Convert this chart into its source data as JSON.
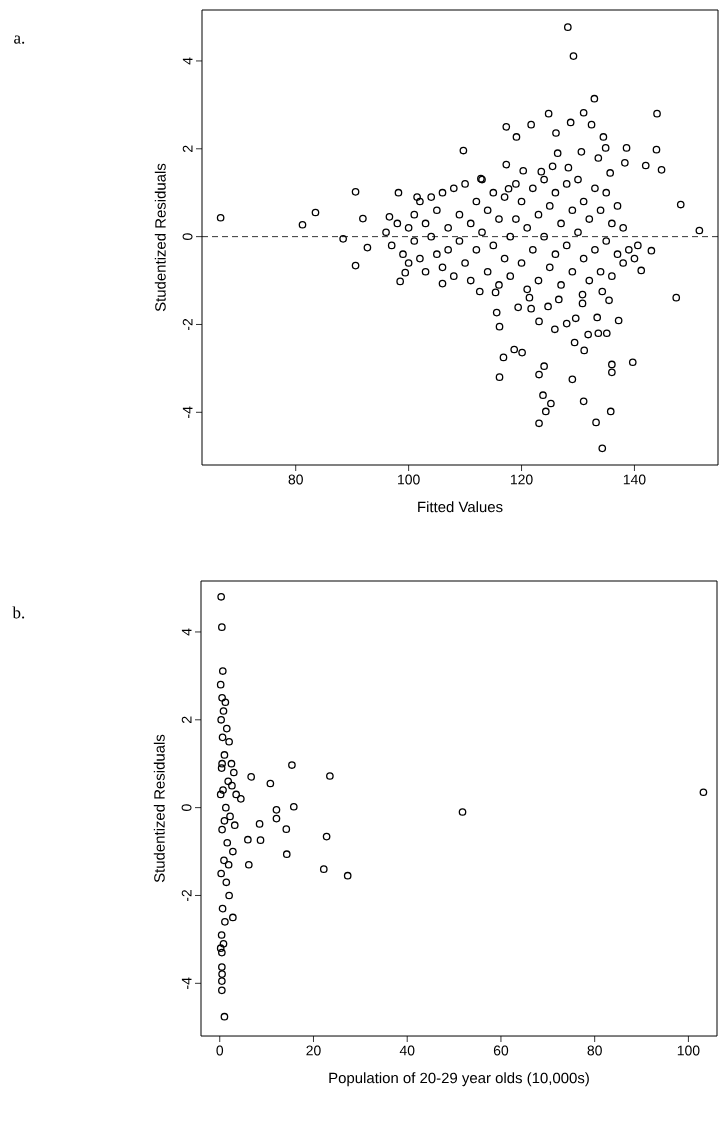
{
  "chart_data": [
    {
      "type": "scatter",
      "xlabel": "Fitted Values",
      "ylabel": "Studentized Residuals",
      "annotations": [
        "a."
      ],
      "marker": "circle",
      "color": "#000000",
      "xlim": [
        63.4,
        154.8
      ],
      "ylim": [
        -5.2,
        5.16
      ],
      "xticks": [
        80,
        100,
        120,
        140
      ],
      "yticks": [
        -4,
        -2,
        0,
        2,
        4
      ],
      "ref_lines": [
        {
          "axis": "y",
          "value": 0,
          "line_style": "dashed",
          "color": "#000000"
        }
      ],
      "x": [
        66.7,
        81.2,
        83.5,
        88.4,
        90.6,
        91.9,
        98.2,
        101.5,
        96.6,
        109.7,
        128.2,
        129.2,
        132.9,
        124.8,
        131,
        117.3,
        119.1,
        121.7,
        128.7,
        132.4,
        144,
        126.1,
        134.5,
        134.9,
        130.6,
        133.6,
        138.6,
        143.9,
        117.3,
        120.3,
        138.3,
        142,
        144.8,
        148.2,
        151.5,
        126.4,
        125.5,
        128.3,
        123.5,
        135.7,
        112.8,
        117.7,
        90.6,
        92.7,
        98.5,
        99.4,
        106,
        112.6,
        115.4,
        115.6,
        116.1,
        116.8,
        118.7,
        120.1,
        116.1,
        119.4,
        121.7,
        123.1,
        124,
        123.1,
        123.8,
        125.2,
        124.3,
        123.1,
        125.9,
        128,
        129.6,
        129.4,
        131.1,
        131.8,
        133.6,
        135.1,
        133.4,
        137.2,
        129,
        131,
        133.2,
        134.3,
        135.8,
        136,
        136,
        139.7,
        147.4,
        130.8,
        130.8,
        135.5,
        134.3,
        143,
        141.2,
        140.6,
        121.4,
        124.7,
        126.6,
        96,
        97,
        98,
        99,
        100,
        100,
        101,
        101,
        102,
        102,
        103,
        103,
        104,
        104,
        105,
        105,
        106,
        106,
        107,
        107,
        108,
        108,
        109,
        109,
        110,
        110,
        111,
        111,
        112,
        112,
        113,
        113,
        114,
        114,
        115,
        115,
        116,
        116,
        117,
        117,
        118,
        118,
        119,
        119,
        120,
        120,
        121,
        121,
        122,
        122,
        123,
        123,
        124,
        124,
        125,
        125,
        126,
        126,
        127,
        127,
        128,
        128,
        129,
        129,
        130,
        130,
        131,
        131,
        132,
        132,
        133,
        133,
        134,
        134,
        135,
        135,
        136,
        136,
        137,
        137,
        138,
        138,
        139,
        140
      ],
      "values": [
        0.43,
        0.27,
        0.55,
        -0.05,
        1.02,
        0.41,
        1.0,
        0.9,
        0.45,
        1.96,
        4.77,
        4.11,
        3.14,
        2.8,
        2.82,
        2.5,
        2.27,
        2.55,
        2.6,
        2.55,
        2.8,
        2.36,
        2.27,
        2.02,
        1.93,
        1.79,
        2.02,
        1.98,
        1.64,
        1.5,
        1.68,
        1.62,
        1.52,
        0.73,
        0.14,
        1.9,
        1.6,
        1.57,
        1.48,
        1.45,
        1.32,
        1.09,
        -0.66,
        -0.25,
        -1.02,
        -0.82,
        -1.07,
        -1.25,
        -1.27,
        -1.73,
        -2.05,
        -2.75,
        -2.57,
        -2.64,
        -3.2,
        -1.61,
        -1.64,
        -1.93,
        -2.95,
        -3.14,
        -3.61,
        -3.8,
        -3.98,
        -4.25,
        -2.11,
        -1.98,
        -1.86,
        -2.41,
        -2.59,
        -2.23,
        -2.2,
        -2.2,
        -1.84,
        -1.91,
        -3.25,
        -3.75,
        -4.23,
        -4.82,
        -3.98,
        -2.91,
        -3.09,
        -2.86,
        -1.39,
        -1.32,
        -1.52,
        -1.45,
        -1.25,
        -0.32,
        -0.77,
        -0.2,
        -1.39,
        -1.59,
        -1.43,
        0.1,
        -0.2,
        0.3,
        -0.4,
        0.2,
        -0.6,
        0.5,
        -0.1,
        0.8,
        -0.5,
        0.3,
        -0.8,
        0.9,
        0.0,
        -0.4,
        0.6,
        1.0,
        -0.7,
        0.2,
        -0.3,
        1.1,
        -0.9,
        0.5,
        -0.1,
        1.2,
        -0.6,
        0.3,
        -1.0,
        0.8,
        -0.3,
        1.3,
        0.1,
        -0.8,
        0.6,
        -0.2,
        1.0,
        -1.1,
        0.4,
        -0.5,
        0.9,
        0.0,
        -0.9,
        1.2,
        0.4,
        -0.6,
        0.8,
        -1.2,
        0.2,
        1.1,
        -0.3,
        0.5,
        -1.0,
        1.3,
        0.0,
        -0.7,
        0.7,
        1.0,
        -0.4,
        0.3,
        -1.1,
        1.2,
        -0.2,
        0.6,
        -0.8,
        1.3,
        0.1,
        -0.5,
        0.8,
        -1.0,
        0.4,
        1.1,
        -0.3,
        0.6,
        -0.8,
        1.0,
        -0.1,
        0.3,
        -0.9,
        0.7,
        -0.4,
        -0.6,
        0.2,
        -0.3,
        -0.5
      ]
    },
    {
      "type": "scatter",
      "xlabel": "Population of 20-29 year olds (10,000s)",
      "ylabel": "Studentized Residuals",
      "annotations": [
        "b."
      ],
      "marker": "circle",
      "color": "#000000",
      "xlim": [
        -4,
        106.1
      ],
      "ylim": [
        -5.2,
        5.16
      ],
      "xticks": [
        0,
        20,
        40,
        60,
        80,
        100
      ],
      "yticks": [
        -4,
        -2,
        0,
        2,
        4
      ],
      "x": [
        15.4,
        6.7,
        10.8,
        23.5,
        103.2,
        51.8,
        15.8,
        12.1,
        12.1,
        8.5,
        14.2,
        22.8,
        8.7,
        6,
        14.3,
        6.2,
        22.2,
        27.3,
        0.3,
        0.45,
        0.65,
        0.45,
        0.45,
        0.5,
        0.45,
        0.45,
        2.8,
        1.0,
        0.2,
        0.5,
        0.8,
        1.2,
        0.3,
        1.5,
        2.0,
        0.6,
        1.0,
        2.5,
        3.0,
        0.4,
        1.8,
        3.5,
        4.5,
        0.7,
        1.3,
        2.2,
        3.2,
        0.5,
        1.6,
        2.8,
        0.9,
        0.3,
        1.4,
        2.0,
        0.6,
        1.1,
        0.4,
        0.8,
        0.2,
        0.5,
        1.0,
        0.2,
        2.6,
        1.9
      ],
      "values": [
        0.97,
        0.7,
        0.55,
        0.72,
        0.35,
        -0.1,
        0.02,
        -0.05,
        -0.25,
        -0.37,
        -0.49,
        -0.66,
        -0.74,
        -0.73,
        -1.06,
        -1.3,
        -1.4,
        -1.55,
        4.8,
        4.11,
        3.11,
        -4.16,
        -3.95,
        -3.79,
        -3.63,
        -3.3,
        -2.5,
        -4.76,
        2.8,
        2.5,
        2.2,
        2.4,
        2.0,
        1.8,
        1.5,
        1.6,
        1.2,
        1.0,
        0.8,
        0.9,
        0.6,
        0.3,
        0.2,
        0.4,
        0.0,
        -0.2,
        -0.4,
        -0.5,
        -0.8,
        -1.0,
        -1.2,
        -1.5,
        -1.7,
        -2.0,
        -2.3,
        -2.6,
        -2.9,
        -3.1,
        -3.2,
        1.0,
        -0.3,
        0.3,
        0.5,
        -1.3
      ]
    }
  ]
}
